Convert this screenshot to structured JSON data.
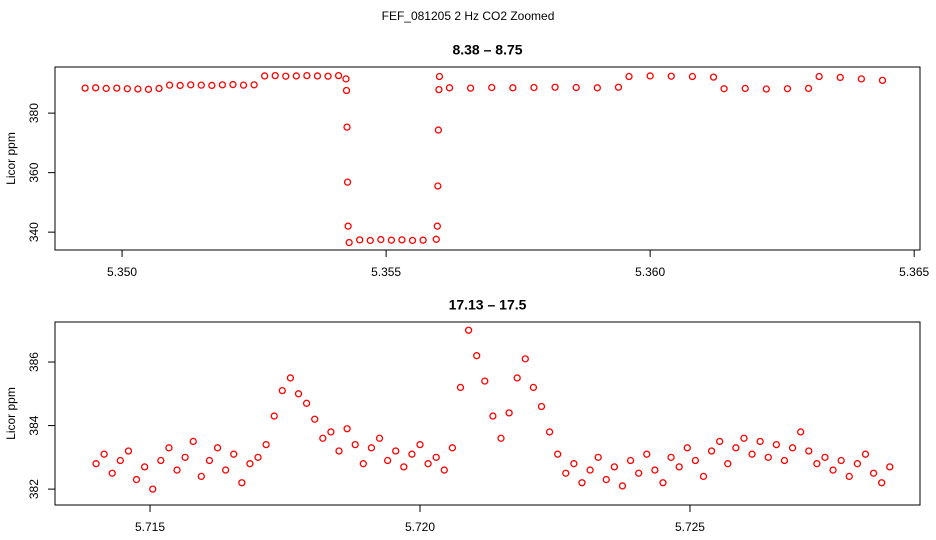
{
  "title": "FEF_081205  2 Hz CO2 Zoomed",
  "chart_data": [
    {
      "type": "scatter",
      "title": "8.38 – 8.75",
      "y_label": "Licor ppm",
      "color": "#ff0000",
      "x": [
        5.3493,
        5.3495,
        5.3497,
        5.3499,
        5.3501,
        5.3503,
        5.3505,
        5.3507,
        5.3509,
        5.3511,
        5.3513,
        5.3515,
        5.3517,
        5.3519,
        5.3521,
        5.3523,
        5.3525,
        5.3527,
        5.3529,
        5.3531,
        5.3533,
        5.3535,
        5.3537,
        5.3539,
        5.3541,
        5.35424,
        5.35425,
        5.35426,
        5.35427,
        5.35428,
        5.3543,
        5.3545,
        5.3547,
        5.3549,
        5.3551,
        5.3553,
        5.3555,
        5.3557,
        5.35595,
        5.35597,
        5.35598,
        5.35599,
        5.356,
        5.35601,
        5.3562,
        5.3566,
        5.357,
        5.3574,
        5.3578,
        5.3582,
        5.3586,
        5.359,
        5.3594,
        5.3596,
        5.36,
        5.3604,
        5.3608,
        5.3612,
        5.3614,
        5.3618,
        5.3622,
        5.3626,
        5.363,
        5.3632,
        5.3636,
        5.364,
        5.3644
      ],
      "values": [
        388.4,
        388.5,
        388.3,
        388.4,
        388.2,
        388.1,
        388.0,
        388.3,
        389.4,
        389.3,
        389.5,
        389.4,
        389.3,
        389.5,
        389.6,
        389.4,
        389.5,
        392.5,
        392.6,
        392.4,
        392.5,
        392.6,
        392.5,
        392.4,
        392.6,
        391.5,
        387.6,
        375.3,
        356.8,
        342.0,
        336.5,
        337.4,
        337.2,
        337.5,
        337.3,
        337.4,
        337.2,
        337.3,
        337.6,
        342.0,
        355.5,
        374.3,
        387.9,
        392.3,
        388.5,
        388.4,
        388.6,
        388.5,
        388.6,
        388.7,
        388.6,
        388.5,
        388.7,
        392.3,
        392.5,
        392.4,
        392.3,
        392.1,
        388.2,
        388.3,
        388.1,
        388.2,
        388.3,
        392.3,
        392.0,
        391.5,
        391.0
      ],
      "xlim": [
        5.34873,
        5.36511
      ],
      "ylim": [
        334,
        395.5
      ],
      "xticks": [
        {
          "value": 5.35,
          "label": "5.350"
        },
        5.355,
        {
          "value": 5.36,
          "label": "5.360"
        },
        5.365
      ],
      "yticks": [
        340,
        360,
        380
      ]
    },
    {
      "type": "scatter",
      "title": "17.13 – 17.5",
      "y_label": "Licor ppm",
      "color": "#ff0000",
      "x": [
        5.714,
        5.71415,
        5.7143,
        5.71445,
        5.7146,
        5.71475,
        5.7149,
        5.71505,
        5.7152,
        5.71535,
        5.7155,
        5.71565,
        5.7158,
        5.71595,
        5.7161,
        5.71625,
        5.7164,
        5.71655,
        5.7167,
        5.71685,
        5.717,
        5.71715,
        5.7173,
        5.71745,
        5.7176,
        5.71775,
        5.7179,
        5.71805,
        5.7182,
        5.71835,
        5.7185,
        5.71865,
        5.7188,
        5.71895,
        5.7191,
        5.71925,
        5.7194,
        5.71955,
        5.7197,
        5.71985,
        5.72,
        5.72015,
        5.7203,
        5.72045,
        5.7206,
        5.72075,
        5.7209,
        5.72105,
        5.7212,
        5.72135,
        5.7215,
        5.72165,
        5.7218,
        5.72195,
        5.7221,
        5.72225,
        5.7224,
        5.72255,
        5.7227,
        5.72285,
        5.723,
        5.72315,
        5.7233,
        5.72345,
        5.7236,
        5.72375,
        5.7239,
        5.72405,
        5.7242,
        5.72435,
        5.7245,
        5.72465,
        5.7248,
        5.72495,
        5.7251,
        5.72525,
        5.7254,
        5.72555,
        5.7257,
        5.72585,
        5.726,
        5.72615,
        5.7263,
        5.72645,
        5.7266,
        5.72675,
        5.7269,
        5.72705,
        5.7272,
        5.72735,
        5.7275,
        5.72765,
        5.7278,
        5.72795,
        5.7281,
        5.72825,
        5.7284,
        5.72855,
        5.7287
      ],
      "values": [
        382.8,
        383.1,
        382.5,
        382.9,
        383.2,
        382.3,
        382.7,
        382.0,
        382.9,
        383.3,
        382.6,
        383.0,
        383.5,
        382.4,
        382.9,
        383.3,
        382.6,
        383.1,
        382.2,
        382.8,
        383.0,
        383.4,
        384.3,
        385.1,
        385.5,
        385.0,
        384.7,
        384.2,
        383.6,
        383.8,
        383.2,
        383.9,
        383.4,
        382.8,
        383.3,
        383.6,
        382.9,
        383.2,
        382.7,
        383.1,
        383.4,
        382.8,
        383.0,
        382.6,
        383.3,
        385.2,
        387.0,
        386.2,
        385.4,
        384.3,
        383.6,
        384.4,
        385.5,
        386.1,
        385.2,
        384.6,
        383.8,
        383.1,
        382.5,
        382.8,
        382.2,
        382.6,
        383.0,
        382.3,
        382.7,
        382.1,
        382.9,
        382.5,
        383.1,
        382.6,
        382.2,
        383.0,
        382.7,
        383.3,
        382.9,
        382.4,
        383.2,
        383.5,
        382.8,
        383.3,
        383.6,
        383.1,
        383.5,
        383.0,
        383.4,
        382.9,
        383.3,
        383.8,
        383.2,
        382.8,
        383.0,
        382.6,
        382.9,
        382.4,
        382.8,
        383.1,
        382.5,
        382.2,
        382.7
      ],
      "xlim": [
        5.71324,
        5.72926
      ],
      "ylim": [
        381.5,
        387.26
      ],
      "xticks": [
        5.715,
        {
          "value": 5.72,
          "label": "5.720"
        },
        5.725
      ],
      "yticks": [
        382,
        384,
        386
      ]
    }
  ]
}
